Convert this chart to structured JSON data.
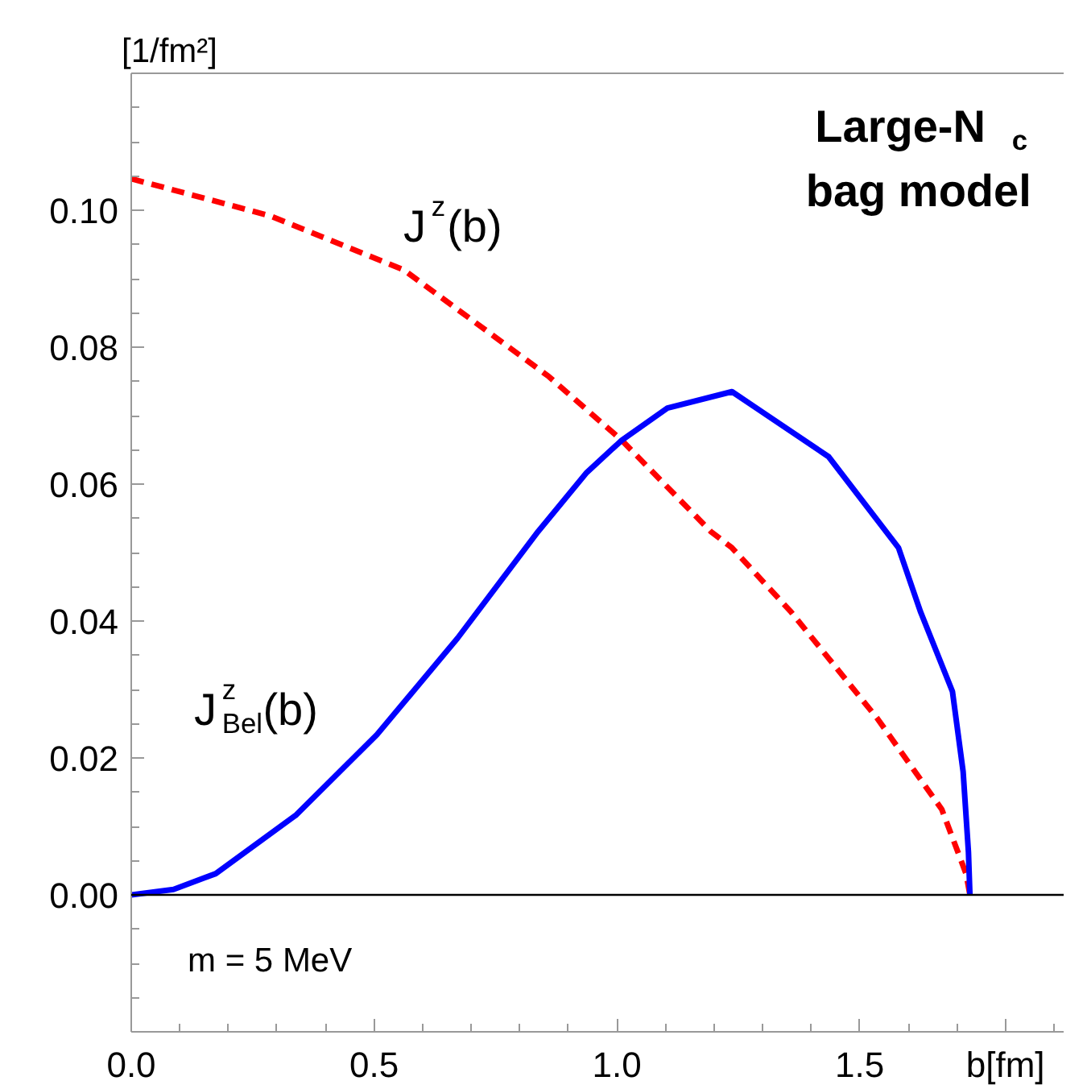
{
  "chart_data": {
    "type": "line",
    "ylabel": "[1/fm²]",
    "xlabel": "b[fm]",
    "xlim": [
      0,
      1.92
    ],
    "ylim": [
      -0.02,
      0.12
    ],
    "xticks": [
      {
        "value": 0,
        "label": "0.0"
      },
      {
        "value": 0.5,
        "label": "0.5"
      },
      {
        "value": 1,
        "label": "1.0"
      },
      {
        "value": 1.5,
        "label": "1.5"
      }
    ],
    "yticks": [
      {
        "value": 0,
        "label": "0.00"
      },
      {
        "value": 0.02,
        "label": "0.02"
      },
      {
        "value": 0.04,
        "label": "0.04"
      },
      {
        "value": 0.06,
        "label": "0.06"
      },
      {
        "value": 0.08,
        "label": "0.08"
      },
      {
        "value": 0.1,
        "label": "0.10"
      }
    ],
    "grid": false,
    "ref_lines": [
      {
        "axis": "y",
        "value": 0,
        "color": "#000000",
        "line_style": "solid"
      }
    ],
    "series": [
      {
        "color": "#ff0000",
        "line_style": "dashed",
        "x": [
          0,
          0.285,
          0.561,
          0.86,
          1.01,
          1.193,
          1.237,
          1.359,
          1.536,
          1.669,
          1.719,
          1.727
        ],
        "values": [
          0.1046,
          0.0992,
          0.0913,
          0.0757,
          0.0664,
          0.0531,
          0.0507,
          0.0413,
          0.0258,
          0.0125,
          0.0031,
          0
        ]
      },
      {
        "color": "#0000ff",
        "line_style": "solid",
        "x": [
          0,
          0.087,
          0.174,
          0.34,
          0.506,
          0.672,
          0.838,
          0.938,
          1.01,
          1.104,
          1.237,
          1.436,
          1.58,
          1.625,
          1.691,
          1.713,
          1.724,
          1.727
        ],
        "values": [
          0,
          0.0008,
          0.0031,
          0.0117,
          0.0234,
          0.0375,
          0.0531,
          0.0617,
          0.0664,
          0.0711,
          0.0735,
          0.064,
          0.0507,
          0.0414,
          0.0297,
          0.018,
          0.0062,
          0
        ]
      }
    ],
    "annotations": [
      "J$^{z}$(b)",
      "J$^{z}$$_{Bel}$(b)",
      "m = 5 MeV",
      "Large-N$_{c}$\nbag model"
    ]
  }
}
